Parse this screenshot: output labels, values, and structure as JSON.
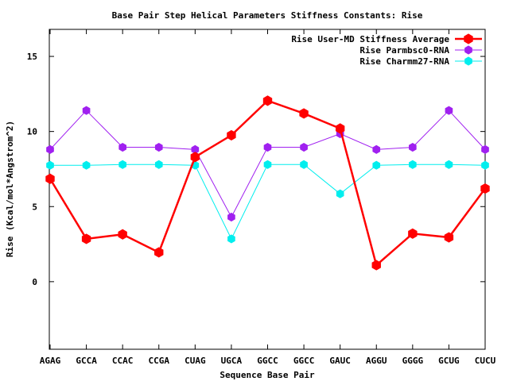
{
  "chart_data": {
    "type": "line",
    "title": "Base Pair Step Helical Parameters Stiffness Constants: Rise",
    "xlabel": "Sequence Base Pair",
    "ylabel": "Rise (Kcal/mol*Angstrom^2)",
    "categories": [
      "AGAG",
      "GCCA",
      "CCAC",
      "CCGA",
      "CUAG",
      "UGCA",
      "GGCC",
      "GGCC",
      "GAUC",
      "AGGU",
      "GGGG",
      "GCUG",
      "CUCU"
    ],
    "ylim": [
      -4.5,
      16.8
    ],
    "yticks": [
      0,
      5,
      10,
      15
    ],
    "grid": false,
    "legend_position": "top-right",
    "series": [
      {
        "name": "Rise User-MD Stiffness Average",
        "color": "#ff0000",
        "marker": "hexagon",
        "line_weight": "thick",
        "values": [
          6.85,
          2.85,
          3.15,
          1.95,
          8.3,
          9.75,
          12.05,
          11.2,
          10.2,
          1.1,
          3.2,
          2.95,
          6.2
        ]
      },
      {
        "name": "Rise Parmbsc0-RNA",
        "color": "#a020f0",
        "marker": "hexagon",
        "line_weight": "thin",
        "values": [
          8.8,
          11.4,
          8.95,
          8.95,
          8.8,
          4.3,
          8.95,
          8.95,
          9.85,
          8.8,
          8.95,
          11.4,
          8.8
        ]
      },
      {
        "name": "Rise Charmm27-RNA",
        "color": "#00eeee",
        "marker": "hexagon",
        "line_weight": "thin",
        "values": [
          7.75,
          7.75,
          7.8,
          7.8,
          7.75,
          2.85,
          7.8,
          7.8,
          5.85,
          7.75,
          7.8,
          7.8,
          7.75
        ]
      }
    ]
  }
}
